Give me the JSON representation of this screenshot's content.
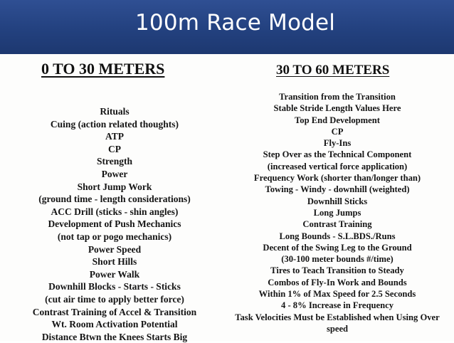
{
  "slide": {
    "title": "100m Race Model"
  },
  "left_column": {
    "heading": "0 TO 30 METERS",
    "items": [
      "Rituals",
      "Cuing (action related thoughts)",
      "ATP",
      "CP",
      "Strength",
      "Power",
      "Short Jump Work",
      "(ground time - length considerations)",
      "ACC Drill (sticks - shin angles)",
      "Development of Push Mechanics",
      "(not tap or pogo mechanics)",
      "Power Speed",
      "Short Hills",
      "Power Walk",
      "Downhill Blocks - Starts - Sticks",
      "(cut air time to apply better force)",
      "Contrast Training of Accel & Transition",
      "Wt. Room Activation Potential",
      "Distance Btwn the Knees Starts Big"
    ]
  },
  "right_column": {
    "heading": "30 TO 60 METERS",
    "items": [
      "Transition from the Transition",
      "Stable Stride Length Values Here",
      "Top End Development",
      "CP",
      "Fly-Ins",
      "Step Over as the Technical Component",
      "(increased vertical force application)",
      "Frequency Work (shorter than/longer than)",
      "Towing - Windy - downhill (weighted)",
      "Downhill Sticks",
      "Long Jumps",
      "Contrast Training",
      "Long Bounds - S.L.BDS./Runs",
      "Decent of the Swing Leg to the Ground",
      "(30-100 meter bounds #/time)",
      "Tires to Teach Transition to Steady",
      "Combos of Fly-In Work and Bounds",
      "Within 1% of Max Speed for 2.5 Seconds",
      "4 - 8% Increase in Frequency",
      "Task Velocities Must be Established when Using Over",
      "speed"
    ]
  }
}
